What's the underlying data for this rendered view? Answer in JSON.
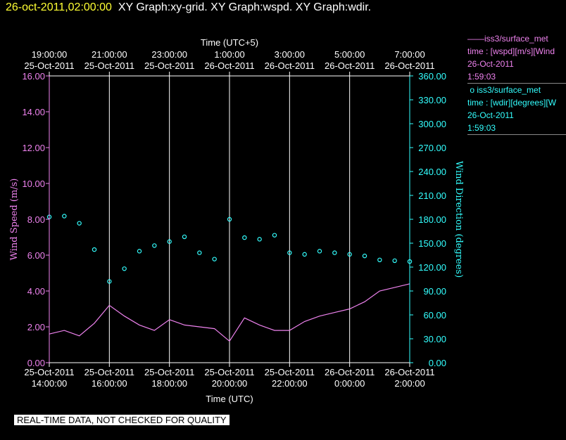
{
  "header": {
    "timestamp": "26-oct-2011,02:00:00",
    "graphs": "XY Graph:xy-grid.  XY Graph:wspd.  XY Graph:wdir."
  },
  "legend": {
    "entry1": {
      "name": "iss3/surface_met",
      "desc": "time : [wspd][m/s][Wind",
      "date": "26-Oct-2011",
      "time": "1:59:03"
    },
    "entry2": {
      "name": "iss3/surface_met",
      "desc": "time : [wdir][degrees][W",
      "date": "26-Oct-2011",
      "time": "1:59:03"
    }
  },
  "banner": "REAL-TIME DATA, NOT CHECKED FOR QUALITY",
  "colors": {
    "wspd": "#ee82ee",
    "wdir": "#33ffff",
    "grid": "#ffffff",
    "background": "#000000"
  },
  "chart_data": {
    "type": "line",
    "top_axis": {
      "title": "Time (UTC+5)",
      "ticks": [
        {
          "time": "19:00:00",
          "date": "25-Oct-2011"
        },
        {
          "time": "21:00:00",
          "date": "25-Oct-2011"
        },
        {
          "time": "23:00:00",
          "date": "25-Oct-2011"
        },
        {
          "time": "1:00:00",
          "date": "26-Oct-2011"
        },
        {
          "time": "3:00:00",
          "date": "26-Oct-2011"
        },
        {
          "time": "5:00:00",
          "date": "26-Oct-2011"
        },
        {
          "time": "7:00:00",
          "date": "26-Oct-2011"
        }
      ]
    },
    "bottom_axis": {
      "title": "Time (UTC)",
      "ticks": [
        {
          "date": "25-Oct-2011",
          "time": "14:00:00"
        },
        {
          "date": "25-Oct-2011",
          "time": "16:00:00"
        },
        {
          "date": "25-Oct-2011",
          "time": "18:00:00"
        },
        {
          "date": "25-Oct-2011",
          "time": "20:00:00"
        },
        {
          "date": "25-Oct-2011",
          "time": "22:00:00"
        },
        {
          "date": "26-Oct-2011",
          "time": "0:00:00"
        },
        {
          "date": "26-Oct-2011",
          "time": "2:00:00"
        }
      ]
    },
    "x_range_utc": [
      "2011-10-25T14:00:00",
      "2011-10-26T02:00:00"
    ],
    "grid": "vertical at each time tick",
    "y_left": {
      "label": "Wind Speed (m/s)",
      "ylim": [
        0,
        16
      ],
      "ticks": [
        "0.00",
        "2.00",
        "4.00",
        "6.00",
        "8.00",
        "10.00",
        "12.00",
        "14.00",
        "16.00"
      ]
    },
    "y_right": {
      "label": "Wind Direction (degrees)",
      "ylim": [
        0,
        360
      ],
      "ticks": [
        "0.00",
        "30.00",
        "60.00",
        "90.00",
        "120.00",
        "150.00",
        "180.00",
        "210.00",
        "240.00",
        "270.00",
        "300.00",
        "330.00",
        "360.00"
      ]
    },
    "series": [
      {
        "name": "iss3/surface_met wspd",
        "style": "line",
        "axis": "left",
        "x": [
          "14:00",
          "14:30",
          "15:00",
          "15:30",
          "16:00",
          "16:30",
          "17:00",
          "17:30",
          "18:00",
          "18:30",
          "19:00",
          "19:30",
          "20:00",
          "20:30",
          "21:00",
          "21:30",
          "22:00",
          "22:30",
          "23:00",
          "23:30",
          "00:00",
          "00:30",
          "01:00",
          "01:30",
          "02:00"
        ],
        "values": [
          1.6,
          1.8,
          1.5,
          2.2,
          3.2,
          2.6,
          2.1,
          1.8,
          2.4,
          2.1,
          2.0,
          1.9,
          1.2,
          2.5,
          2.1,
          1.8,
          1.8,
          2.3,
          2.6,
          2.8,
          3.0,
          3.4,
          4.0,
          4.2,
          4.4
        ]
      },
      {
        "name": "iss3/surface_met wdir",
        "style": "markers",
        "axis": "right",
        "x": [
          "14:00",
          "14:30",
          "15:00",
          "15:30",
          "16:00",
          "16:30",
          "17:00",
          "17:30",
          "18:00",
          "18:30",
          "19:00",
          "19:30",
          "20:00",
          "20:30",
          "21:00",
          "21:30",
          "22:00",
          "22:30",
          "23:00",
          "23:30",
          "00:00",
          "00:30",
          "01:00",
          "01:30",
          "02:00"
        ],
        "values": [
          183,
          184,
          175,
          142,
          102,
          118,
          140,
          147,
          152,
          158,
          138,
          130,
          180,
          157,
          155,
          160,
          138,
          136,
          140,
          138,
          136,
          134,
          129,
          128,
          127
        ]
      }
    ]
  }
}
